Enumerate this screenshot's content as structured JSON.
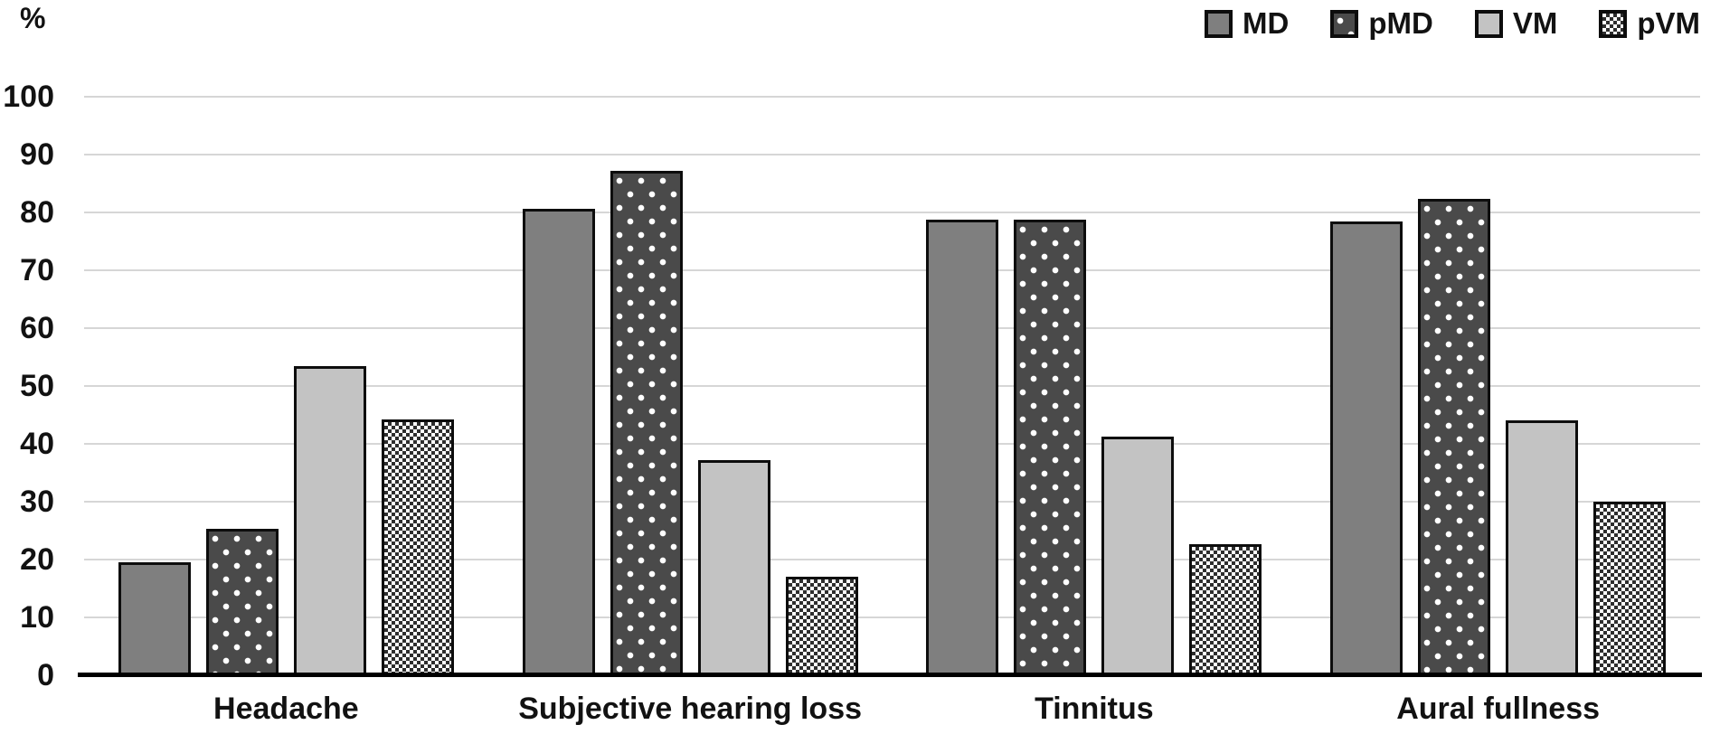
{
  "y_unit_label": "%",
  "colors": {
    "background": "#ffffff",
    "gridline": "#d6d6d6",
    "axis": "#000000",
    "text": "#121212",
    "bar_border": "#0d0d0d",
    "md_fill": "#7f7f7f",
    "pmd_fill": "#4a4a4a",
    "pmd_dot": "#ffffff",
    "vm_fill": "#c3c3c3",
    "pvm_dark": "#2e2e2e",
    "pvm_light": "#ffffff"
  },
  "legend": {
    "position": "top-right",
    "items": [
      {
        "label": "MD",
        "pattern": "md"
      },
      {
        "label": "pMD",
        "pattern": "pmd"
      },
      {
        "label": "VM",
        "pattern": "vm"
      },
      {
        "label": "pVM",
        "pattern": "pvm"
      }
    ]
  },
  "chart_data": {
    "type": "bar",
    "title": "",
    "xlabel": "",
    "ylabel": "%",
    "ylim": [
      0,
      100
    ],
    "yticks": [
      0,
      10,
      20,
      30,
      40,
      50,
      60,
      70,
      80,
      90,
      100
    ],
    "grid": true,
    "legend_position": "top-right",
    "categories": [
      "Headache",
      "Subjective hearing loss",
      "Tinnitus",
      "Aural fullness"
    ],
    "series": [
      {
        "name": "MD",
        "pattern": "md",
        "values": [
          19.5,
          80.6,
          78.8,
          78.4
        ]
      },
      {
        "name": "pMD",
        "pattern": "pmd",
        "values": [
          25.3,
          87.2,
          78.8,
          82.3
        ]
      },
      {
        "name": "VM",
        "pattern": "vm",
        "values": [
          53.5,
          37.2,
          41.3,
          44.0
        ]
      },
      {
        "name": "pVM",
        "pattern": "pvm",
        "values": [
          44.2,
          17.0,
          22.6,
          30.0
        ]
      }
    ]
  }
}
